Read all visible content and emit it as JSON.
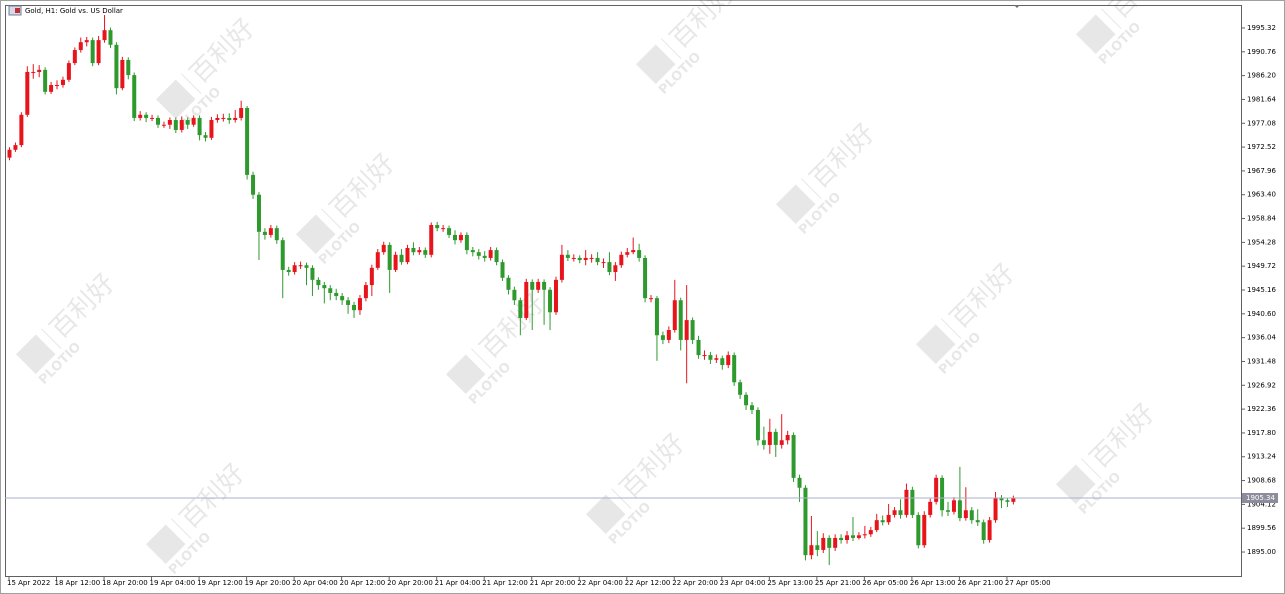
{
  "chart_data": {
    "type": "candlestick",
    "title": "Gold, H1:  Gold vs. US Dollar",
    "watermark_logo": "PLOTIO",
    "watermark_text": "百利好",
    "up_color": "#e8141c",
    "down_color": "#2e9a2e",
    "price_line_color": "#a8b0c8",
    "last_price": 1905.34,
    "ylim": [
      1890.41,
      1999.72
    ],
    "yticks": [
      {
        "value": 1895.0,
        "label": "1895.00"
      },
      1899.56,
      1904.12,
      1908.68,
      1913.24,
      {
        "value": 1917.8,
        "label": "1917.80"
      },
      1922.36,
      1926.92,
      1931.48,
      1936.04,
      {
        "value": 1940.6,
        "label": "1940.60"
      },
      1945.16,
      1949.72,
      1954.28,
      1958.84,
      {
        "value": 1963.4,
        "label": "1963.40"
      },
      1967.96,
      1972.52,
      1977.08,
      1981.64,
      {
        "value": 1986.2,
        "label": "1986.20"
      },
      1990.76,
      1995.32
    ],
    "categories": [
      "15 Apr 2022",
      null,
      null,
      null,
      null,
      null,
      null,
      null,
      "18 Apr 12:00",
      null,
      null,
      null,
      null,
      null,
      null,
      null,
      "18 Apr 20:00",
      null,
      null,
      null,
      null,
      null,
      null,
      null,
      "19 Apr 04:00",
      null,
      null,
      null,
      null,
      null,
      null,
      null,
      "19 Apr 12:00",
      null,
      null,
      null,
      null,
      null,
      null,
      null,
      "19 Apr 20:00",
      null,
      null,
      null,
      null,
      null,
      null,
      null,
      "20 Apr 04:00",
      null,
      null,
      null,
      null,
      null,
      null,
      null,
      "20 Apr 12:00",
      null,
      null,
      null,
      null,
      null,
      null,
      null,
      "20 Apr 20:00",
      null,
      null,
      null,
      null,
      null,
      null,
      null,
      "21 Apr 04:00",
      null,
      null,
      null,
      null,
      null,
      null,
      null,
      "21 Apr 12:00",
      null,
      null,
      null,
      null,
      null,
      null,
      null,
      "21 Apr 20:00",
      null,
      null,
      null,
      null,
      null,
      null,
      null,
      "22 Apr 04:00",
      null,
      null,
      null,
      null,
      null,
      null,
      null,
      "22 Apr 12:00",
      null,
      null,
      null,
      null,
      null,
      null,
      null,
      "22 Apr 20:00",
      null,
      null,
      null,
      null,
      null,
      null,
      null,
      "23 Apr 04:00",
      null,
      null,
      null,
      null,
      null,
      null,
      null,
      "25 Apr 13:00",
      null,
      null,
      null,
      null,
      null,
      null,
      null,
      "25 Apr 21:00",
      null,
      null,
      null,
      null,
      null,
      null,
      null,
      "26 Apr 05:00",
      null,
      null,
      null,
      null,
      null,
      null,
      null,
      "26 Apr 13:00",
      null,
      null,
      null,
      null,
      null,
      null,
      null,
      "26 Apr 21:00",
      null,
      null,
      null,
      null,
      null,
      null,
      null,
      "27 Apr 05:00",
      null
    ],
    "open": [
      1970.5,
      1972.0,
      1972.9,
      1978.7,
      1986.9,
      1986.9,
      1987.3,
      1983.1,
      1984.4,
      1984.4,
      1985.4,
      1988.6,
      1991.1,
      1992.6,
      1993.0,
      1988.6,
      1993.0,
      1994.9,
      1992.1,
      1983.8,
      1989.2,
      1986.3,
      1978.1,
      1978.7,
      1978.1,
      1978.1,
      1976.8,
      1976.8,
      1977.7,
      1975.8,
      1977.7,
      1976.8,
      1978.1,
      1974.8,
      1974.3,
      1977.7,
      1978.1,
      1978.1,
      1977.7,
      1978.1,
      1980.0,
      1967.2,
      1963.4,
      1956.3,
      1955.7,
      1957.0,
      1954.7,
      1949.0,
      1948.6,
      1949.9,
      1949.9,
      1949.4,
      1947.1,
      1946.1,
      1945.5,
      1944.6,
      1944.0,
      1943.2,
      1942.3,
      1941.3,
      1943.6,
      1946.1,
      1949.4,
      1952.4,
      1953.8,
      1949.0,
      1951.9,
      1950.5,
      1953.2,
      1952.4,
      1952.8,
      1951.9,
      1957.6,
      1957.0,
      1957.0,
      1955.7,
      1954.7,
      1955.7,
      1952.8,
      1952.4,
      1951.7,
      1951.3,
      1952.8,
      1950.5,
      1947.5,
      1945.2,
      1943.2,
      1939.8,
      1946.7,
      1945.2,
      1946.7,
      1945.2,
      1940.9,
      1947.1,
      1951.9,
      1951.3,
      1951.3,
      1950.9,
      1951.3,
      1951.3,
      1950.5,
      1950.5,
      1948.6,
      1949.9,
      1951.9,
      1952.4,
      1952.8,
      1951.3,
      1943.6,
      1943.6,
      1936.5,
      1935.6,
      1937.5,
      1943.2,
      1935.6,
      1939.4,
      1935.6,
      1932.7,
      1932.7,
      1931.8,
      1932.1,
      1930.8,
      1932.7,
      1927.5,
      1925.1,
      1923.1,
      1922.2,
      1916.4,
      1915.5,
      1918.0,
      1915.5,
      1916.4,
      1917.4,
      1909.2,
      1907.3,
      1894.4,
      1896.3,
      1895.4,
      1897.7,
      1895.8,
      1897.7,
      1897.3,
      1898.2,
      1897.7,
      1898.2,
      1898.4,
      1899.2,
      1901.1,
      1900.7,
      1902.1,
      1903.0,
      1902.1,
      1906.9,
      1902.1,
      1896.3,
      1902.1,
      1904.6,
      1909.2,
      1903.0,
      1902.7,
      1904.9,
      1901.5,
      1903.0,
      1901.1,
      1900.7,
      1897.3,
      1901.1,
      1905.3,
      1904.9,
      1904.6
    ],
    "high": [
      1972.5,
      1973.4,
      1979.2,
      1988.0,
      1988.4,
      1988.2,
      1987.8,
      1985.0,
      1985.3,
      1986.0,
      1989.1,
      1991.6,
      1993.5,
      1993.6,
      1993.5,
      1993.8,
      1997.8,
      1995.4,
      1992.6,
      1989.8,
      1989.7,
      1986.8,
      1979.4,
      1979.2,
      1978.7,
      1978.6,
      1977.4,
      1978.2,
      1978.2,
      1978.4,
      1978.2,
      1978.6,
      1978.6,
      1975.4,
      1978.3,
      1978.8,
      1978.9,
      1979.0,
      1979.6,
      1981.4,
      1980.4,
      1967.8,
      1963.9,
      1957.0,
      1957.6,
      1957.5,
      1955.2,
      1949.6,
      1950.5,
      1950.6,
      1950.4,
      1949.9,
      1947.6,
      1946.7,
      1946.1,
      1945.4,
      1944.6,
      1943.8,
      1942.9,
      1944.2,
      1946.7,
      1950.0,
      1953.0,
      1954.4,
      1954.3,
      1952.5,
      1953.0,
      1953.8,
      1954.3,
      1953.4,
      1953.3,
      1958.1,
      1958.2,
      1957.6,
      1957.5,
      1956.6,
      1956.2,
      1956.2,
      1953.4,
      1953.0,
      1952.6,
      1953.4,
      1953.3,
      1951.0,
      1948.0,
      1945.8,
      1943.7,
      1947.3,
      1947.2,
      1947.3,
      1947.2,
      1945.7,
      1947.7,
      1953.8,
      1952.8,
      1952.0,
      1951.8,
      1952.8,
      1952.0,
      1952.4,
      1951.2,
      1952.4,
      1950.5,
      1952.5,
      1953.2,
      1955.2,
      1954.0,
      1951.8,
      1944.2,
      1944.0,
      1937.2,
      1938.2,
      1947.1,
      1943.7,
      1946.1,
      1939.9,
      1936.4,
      1933.6,
      1933.3,
      1932.8,
      1932.6,
      1933.4,
      1933.2,
      1928.0,
      1925.6,
      1923.7,
      1922.7,
      1919.0,
      1920.5,
      1918.6,
      1921.4,
      1918.2,
      1917.9,
      1909.8,
      1907.8,
      1901.9,
      1899.0,
      1898.6,
      1898.2,
      1898.4,
      1898.4,
      1899.0,
      1901.7,
      1898.8,
      1900.0,
      1899.8,
      1902.3,
      1902.0,
      1904.2,
      1903.6,
      1905.1,
      1908.1,
      1907.5,
      1902.6,
      1902.8,
      1905.2,
      1909.8,
      1909.7,
      1904.6,
      1905.5,
      1911.3,
      1907.4,
      1903.6,
      1903.2,
      1901.2,
      1901.7,
      1906.5,
      1905.9,
      1905.4,
      1905.8
    ],
    "low": [
      1970.0,
      1971.6,
      1972.5,
      1978.3,
      1985.6,
      1985.9,
      1982.6,
      1982.7,
      1983.6,
      1983.9,
      1985.0,
      1988.2,
      1990.6,
      1991.8,
      1988.0,
      1988.2,
      1992.5,
      1991.5,
      1982.6,
      1983.4,
      1985.5,
      1977.5,
      1977.6,
      1977.3,
      1977.5,
      1976.2,
      1976.2,
      1976.0,
      1975.2,
      1975.3,
      1976.0,
      1976.4,
      1973.8,
      1973.6,
      1973.9,
      1977.2,
      1977.4,
      1977.0,
      1977.2,
      1977.6,
      1966.3,
      1962.6,
      1950.9,
      1954.8,
      1955.2,
      1954.0,
      1943.6,
      1947.9,
      1948.1,
      1949.2,
      1946.1,
      1944.0,
      1945.2,
      1942.6,
      1943.2,
      1943.2,
      1942.3,
      1940.6,
      1939.8,
      1940.4,
      1943.0,
      1944.0,
      1949.0,
      1951.9,
      1944.6,
      1948.6,
      1950.0,
      1950.1,
      1951.8,
      1951.9,
      1951.3,
      1951.4,
      1956.4,
      1956.3,
      1955.1,
      1953.9,
      1954.2,
      1952.0,
      1951.6,
      1951.0,
      1950.6,
      1950.8,
      1949.9,
      1946.9,
      1944.3,
      1942.3,
      1936.5,
      1939.4,
      1937.5,
      1944.6,
      1938.5,
      1937.5,
      1940.4,
      1946.6,
      1950.7,
      1950.6,
      1950.3,
      1949.9,
      1950.4,
      1949.9,
      1949.4,
      1948.0,
      1946.9,
      1949.4,
      1951.4,
      1952.0,
      1950.6,
      1942.8,
      1942.8,
      1931.6,
      1934.8,
      1935.0,
      1937.0,
      1933.6,
      1927.3,
      1934.8,
      1932.0,
      1931.8,
      1931.0,
      1931.2,
      1929.9,
      1930.2,
      1926.8,
      1924.3,
      1922.2,
      1921.4,
      1915.4,
      1914.6,
      1913.8,
      1913.2,
      1914.8,
      1915.6,
      1908.4,
      1904.6,
      1893.4,
      1893.6,
      1894.2,
      1894.8,
      1892.5,
      1895.2,
      1896.6,
      1896.6,
      1897.1,
      1897.4,
      1897.6,
      1897.9,
      1898.8,
      1900.1,
      1900.2,
      1901.6,
      1901.4,
      1901.6,
      1901.5,
      1895.7,
      1895.8,
      1901.6,
      1904.1,
      1901.8,
      1901.9,
      1902.2,
      1900.9,
      1901.0,
      1900.4,
      1900.0,
      1896.6,
      1896.8,
      1900.6,
      1903.4,
      1903.6,
      1904.1
    ],
    "close": [
      1972.0,
      1972.9,
      1978.7,
      1986.9,
      1986.9,
      1987.3,
      1983.1,
      1984.4,
      1984.4,
      1985.4,
      1988.6,
      1991.1,
      1992.6,
      1993.0,
      1988.6,
      1993.0,
      1994.9,
      1992.1,
      1983.8,
      1989.2,
      1986.3,
      1978.1,
      1978.7,
      1978.1,
      1978.1,
      1976.8,
      1976.8,
      1977.7,
      1975.8,
      1977.7,
      1976.8,
      1978.1,
      1974.8,
      1974.3,
      1977.7,
      1978.1,
      1978.1,
      1977.7,
      1978.1,
      1980.0,
      1967.2,
      1963.4,
      1956.3,
      1955.7,
      1957.0,
      1954.7,
      1949.0,
      1948.6,
      1949.9,
      1949.9,
      1949.4,
      1947.1,
      1946.1,
      1945.5,
      1944.6,
      1944.0,
      1943.2,
      1942.3,
      1941.3,
      1943.6,
      1946.1,
      1949.4,
      1952.4,
      1953.8,
      1949.0,
      1951.9,
      1950.5,
      1953.2,
      1952.4,
      1952.8,
      1951.9,
      1957.6,
      1957.0,
      1957.0,
      1955.7,
      1954.7,
      1955.7,
      1952.8,
      1952.4,
      1951.7,
      1951.3,
      1952.8,
      1950.5,
      1947.5,
      1945.2,
      1943.2,
      1939.8,
      1946.7,
      1945.2,
      1946.7,
      1945.2,
      1940.9,
      1947.1,
      1951.9,
      1951.3,
      1951.3,
      1950.9,
      1951.3,
      1951.3,
      1950.5,
      1950.5,
      1948.6,
      1949.9,
      1951.9,
      1952.4,
      1952.8,
      1951.3,
      1943.6,
      1943.6,
      1936.5,
      1935.6,
      1937.5,
      1943.2,
      1935.6,
      1939.4,
      1935.6,
      1932.7,
      1932.7,
      1931.8,
      1932.1,
      1930.8,
      1932.7,
      1927.5,
      1925.1,
      1923.1,
      1922.2,
      1916.4,
      1915.5,
      1918.0,
      1915.5,
      1916.4,
      1917.4,
      1909.2,
      1907.3,
      1894.4,
      1896.3,
      1895.4,
      1897.7,
      1895.8,
      1897.7,
      1897.3,
      1898.2,
      1897.7,
      1898.2,
      1898.4,
      1899.2,
      1901.1,
      1900.7,
      1902.1,
      1903.0,
      1902.1,
      1906.9,
      1902.1,
      1896.3,
      1902.1,
      1904.6,
      1909.2,
      1903.0,
      1902.7,
      1904.9,
      1901.5,
      1903.0,
      1901.1,
      1900.7,
      1897.3,
      1901.1,
      1905.3,
      1904.9,
      1904.6,
      1905.34
    ]
  }
}
